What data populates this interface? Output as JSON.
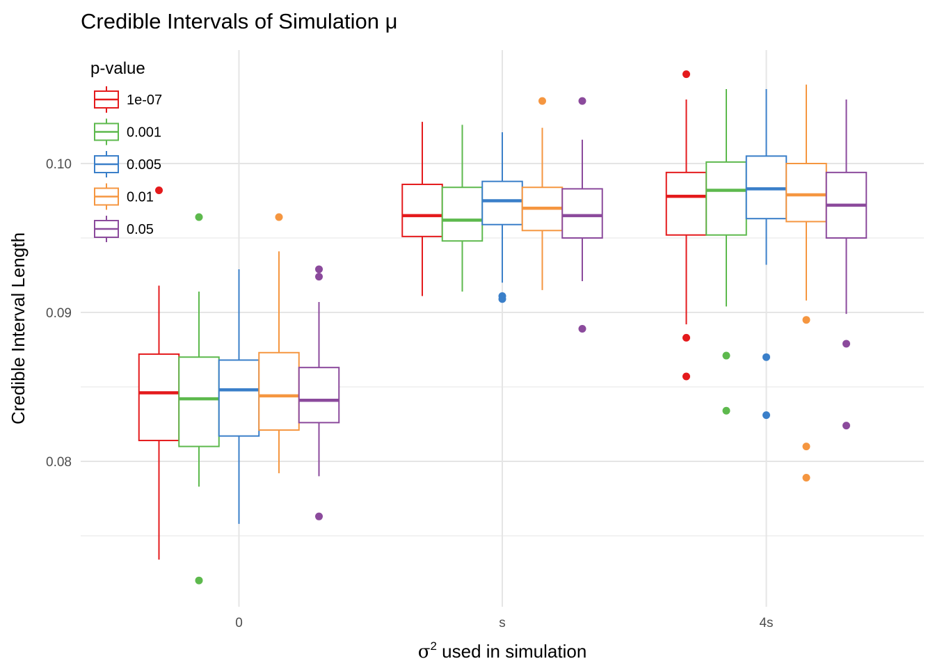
{
  "chart_data": {
    "type": "boxplot",
    "title": "Credible Intervals of Simulation μ",
    "xlabel_symbol": "σ",
    "xlabel_superscript": "2",
    "xlabel_rest": " used in simulation",
    "ylabel": "Credible Interval Length",
    "categories": [
      "0",
      "s",
      "4s"
    ],
    "yticks": [
      "0.08",
      "0.09",
      "0.10"
    ],
    "ytick_values": [
      0.08,
      0.09,
      0.1
    ],
    "ylim": [
      0.0705,
      0.1055
    ],
    "legend_title": "p-value",
    "legend_position": "top-left",
    "grid": true,
    "series": [
      {
        "name": "1e-07",
        "color": "#E41A1C",
        "boxes": [
          {
            "whisker_low": 0.0734,
            "q1": 0.0814,
            "median": 0.0846,
            "q3": 0.0872,
            "whisker_high": 0.0918,
            "outliers": [
              0.0982
            ]
          },
          {
            "whisker_low": 0.0911,
            "q1": 0.0951,
            "median": 0.0965,
            "q3": 0.0986,
            "whisker_high": 0.1028,
            "outliers": []
          },
          {
            "whisker_low": 0.0892,
            "q1": 0.0952,
            "median": 0.0978,
            "q3": 0.0994,
            "whisker_high": 0.1043,
            "outliers": [
              0.106,
              0.0883,
              0.0857
            ]
          }
        ]
      },
      {
        "name": "0.001",
        "color": "#5DB94D",
        "boxes": [
          {
            "whisker_low": 0.0783,
            "q1": 0.081,
            "median": 0.0842,
            "q3": 0.087,
            "whisker_high": 0.0914,
            "outliers": [
              0.0964,
              0.072
            ]
          },
          {
            "whisker_low": 0.0914,
            "q1": 0.0948,
            "median": 0.0962,
            "q3": 0.0984,
            "whisker_high": 0.1026,
            "outliers": []
          },
          {
            "whisker_low": 0.0904,
            "q1": 0.0952,
            "median": 0.0982,
            "q3": 0.1001,
            "whisker_high": 0.105,
            "outliers": [
              0.0871,
              0.0834
            ]
          }
        ]
      },
      {
        "name": "0.005",
        "color": "#3A7FC9",
        "boxes": [
          {
            "whisker_low": 0.0758,
            "q1": 0.0817,
            "median": 0.0848,
            "q3": 0.0868,
            "whisker_high": 0.0929,
            "outliers": []
          },
          {
            "whisker_low": 0.092,
            "q1": 0.0959,
            "median": 0.0975,
            "q3": 0.0988,
            "whisker_high": 0.1021,
            "outliers": [
              0.0911,
              0.0909
            ]
          },
          {
            "whisker_low": 0.0932,
            "q1": 0.0963,
            "median": 0.0983,
            "q3": 0.1005,
            "whisker_high": 0.105,
            "outliers": [
              0.087,
              0.0831
            ]
          }
        ]
      },
      {
        "name": "0.01",
        "color": "#F59640",
        "boxes": [
          {
            "whisker_low": 0.0792,
            "q1": 0.0821,
            "median": 0.0844,
            "q3": 0.0873,
            "whisker_high": 0.0941,
            "outliers": [
              0.0964
            ]
          },
          {
            "whisker_low": 0.0915,
            "q1": 0.0955,
            "median": 0.097,
            "q3": 0.0984,
            "whisker_high": 0.1024,
            "outliers": [
              0.1042
            ]
          },
          {
            "whisker_low": 0.0908,
            "q1": 0.0961,
            "median": 0.0979,
            "q3": 0.1,
            "whisker_high": 0.1053,
            "outliers": [
              0.0895,
              0.081,
              0.0789
            ]
          }
        ]
      },
      {
        "name": "0.05",
        "color": "#8B4A9C",
        "boxes": [
          {
            "whisker_low": 0.079,
            "q1": 0.0826,
            "median": 0.0841,
            "q3": 0.0863,
            "whisker_high": 0.0907,
            "outliers": [
              0.0929,
              0.0924,
              0.0763
            ]
          },
          {
            "whisker_low": 0.0921,
            "q1": 0.095,
            "median": 0.0965,
            "q3": 0.0983,
            "whisker_high": 0.1016,
            "outliers": [
              0.1042,
              0.0889
            ]
          },
          {
            "whisker_low": 0.0899,
            "q1": 0.095,
            "median": 0.0972,
            "q3": 0.0994,
            "whisker_high": 0.1043,
            "outliers": [
              0.0879,
              0.0824
            ]
          }
        ]
      }
    ]
  }
}
